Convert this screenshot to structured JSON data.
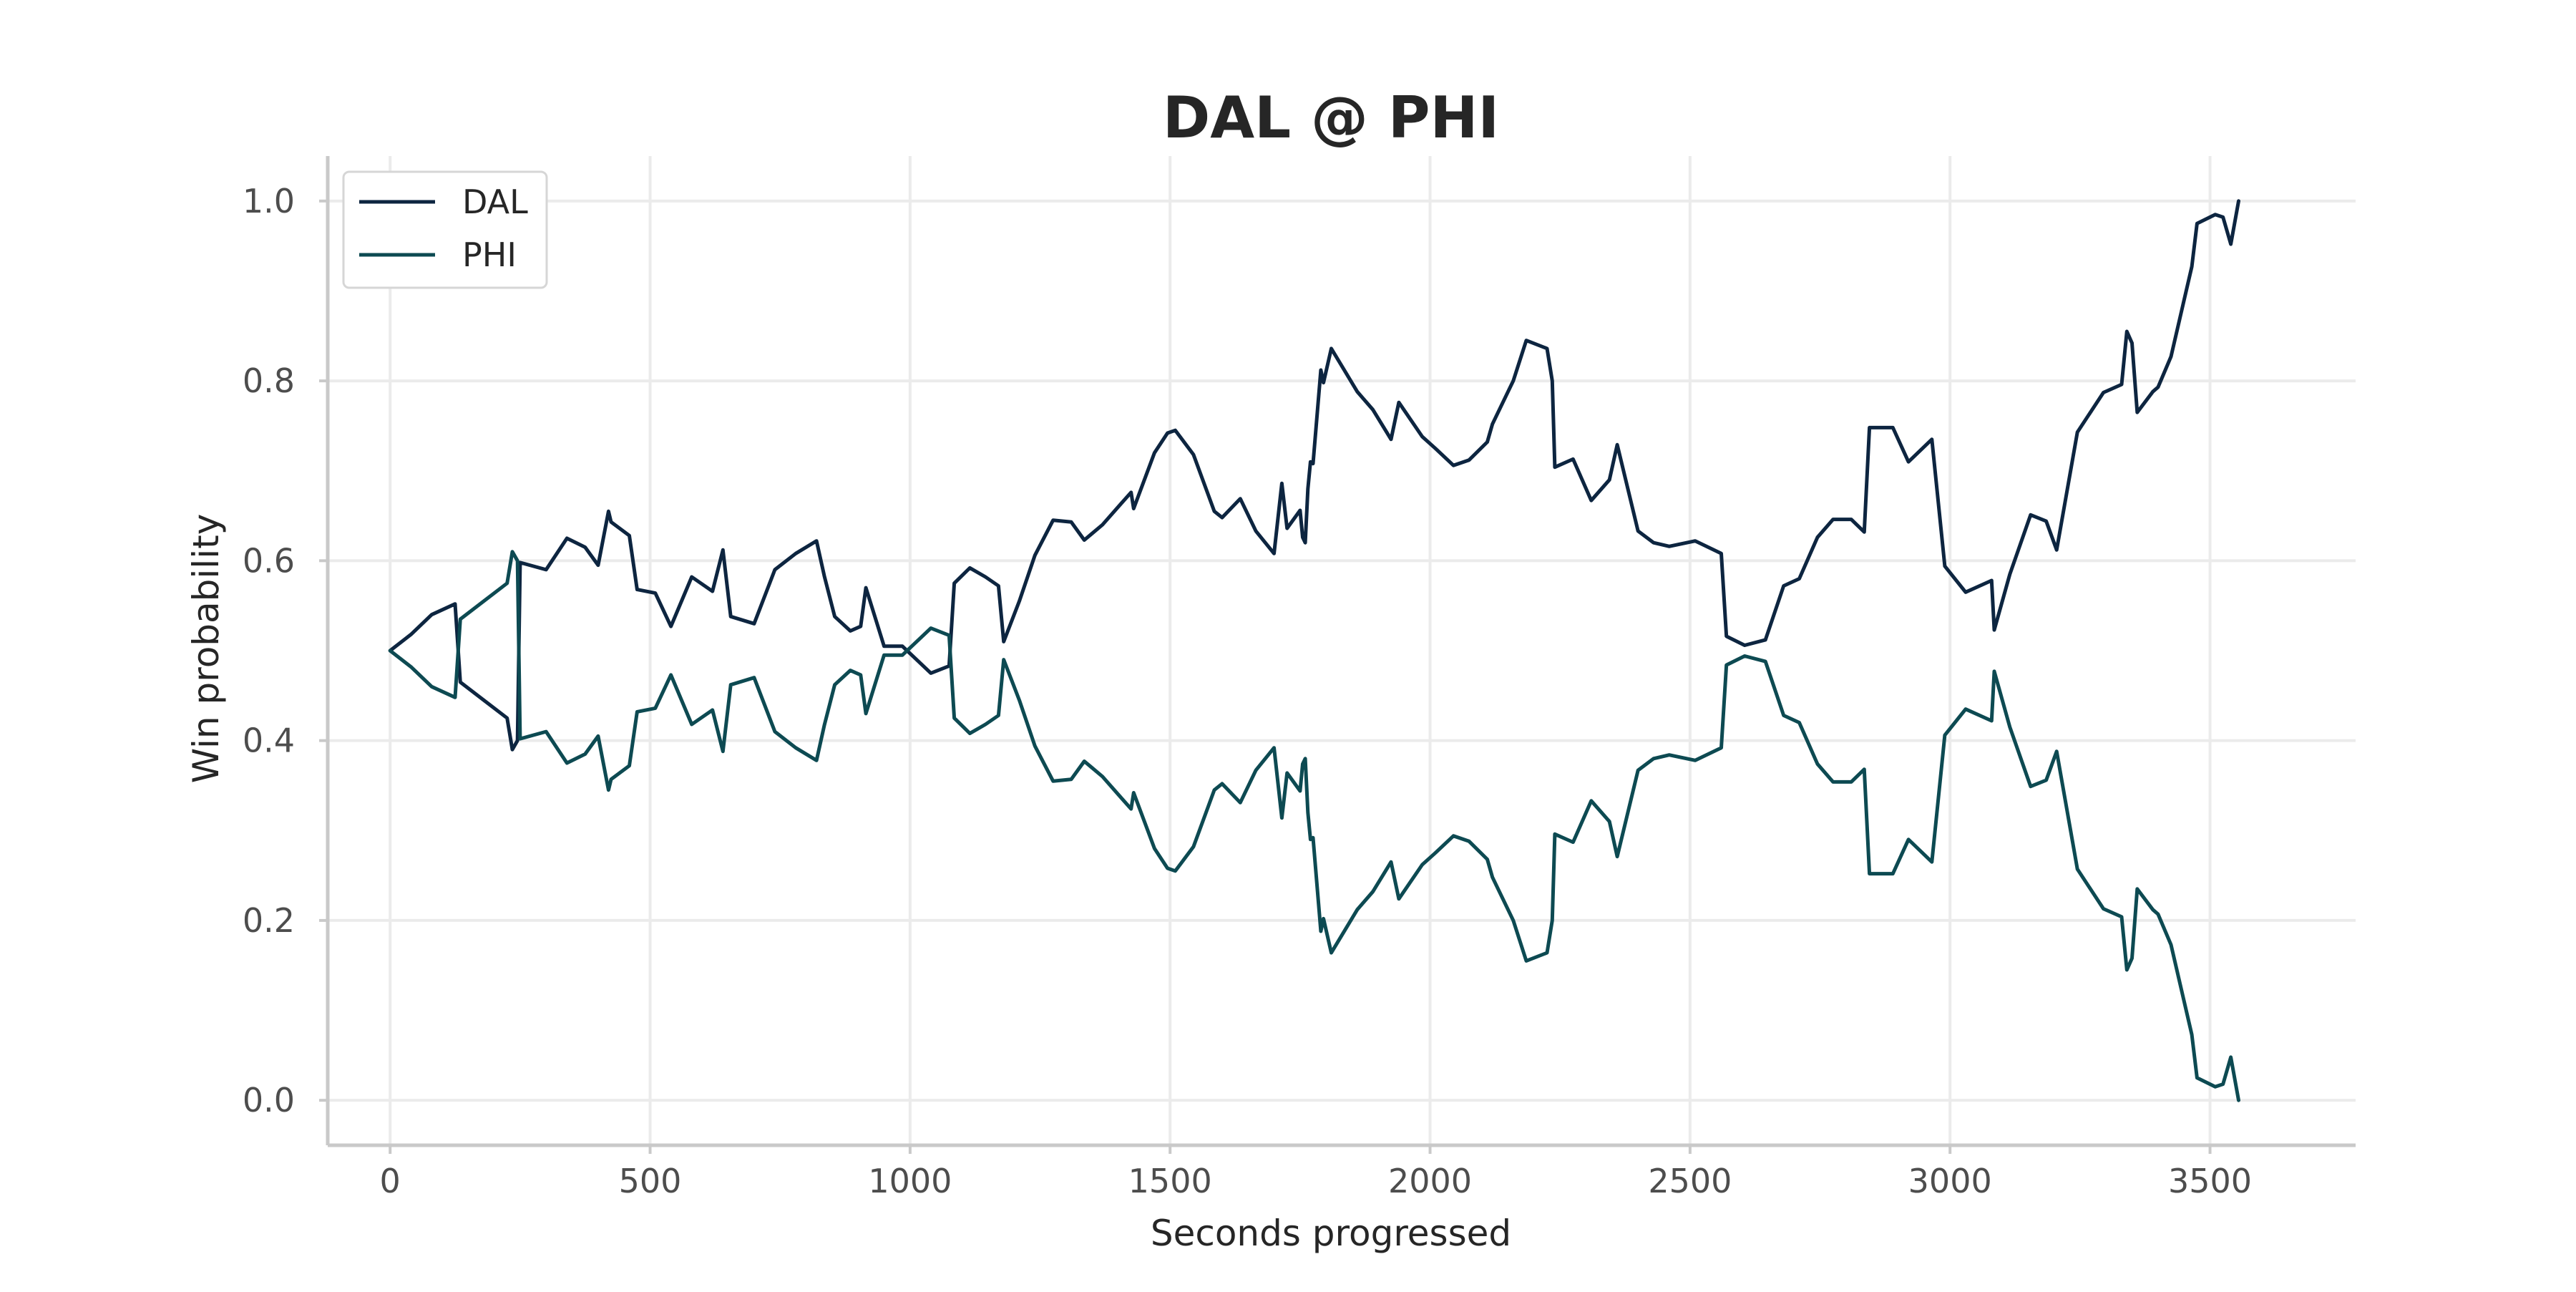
{
  "chart_data": {
    "type": "line",
    "title": "DAL @ PHI",
    "xlabel": "Seconds progressed",
    "ylabel": "Win probability",
    "xlim": [
      -120,
      3780
    ],
    "ylim": [
      -0.05,
      1.05
    ],
    "x_ticks": [
      0,
      500,
      1000,
      1500,
      2000,
      2500,
      3000,
      3500
    ],
    "y_ticks": [
      0.0,
      0.2,
      0.4,
      0.6,
      0.8,
      1.0
    ],
    "x_tick_labels": [
      "0",
      "500",
      "1000",
      "1500",
      "2000",
      "2500",
      "3000",
      "3500"
    ],
    "y_tick_labels": [
      "0.0",
      "0.2",
      "0.4",
      "0.6",
      "0.8",
      "1.0"
    ],
    "grid": true,
    "legend": "top-left",
    "series": [
      {
        "name": "DAL",
        "color": "#0d2540",
        "points": [
          [
            0,
            0.5
          ],
          [
            40,
            0.518
          ],
          [
            80,
            0.54
          ],
          [
            125,
            0.552
          ],
          [
            135,
            0.465
          ],
          [
            180,
            0.445
          ],
          [
            225,
            0.425
          ],
          [
            235,
            0.39
          ],
          [
            245,
            0.4
          ],
          [
            250,
            0.598
          ],
          [
            300,
            0.59
          ],
          [
            340,
            0.625
          ],
          [
            375,
            0.615
          ],
          [
            400,
            0.595
          ],
          [
            420,
            0.655
          ],
          [
            425,
            0.643
          ],
          [
            460,
            0.628
          ],
          [
            475,
            0.568
          ],
          [
            510,
            0.564
          ],
          [
            540,
            0.527
          ],
          [
            580,
            0.582
          ],
          [
            620,
            0.566
          ],
          [
            640,
            0.612
          ],
          [
            655,
            0.538
          ],
          [
            700,
            0.53
          ],
          [
            740,
            0.59
          ],
          [
            780,
            0.608
          ],
          [
            820,
            0.622
          ],
          [
            835,
            0.583
          ],
          [
            855,
            0.538
          ],
          [
            885,
            0.522
          ],
          [
            905,
            0.527
          ],
          [
            915,
            0.57
          ],
          [
            950,
            0.505
          ],
          [
            985,
            0.505
          ],
          [
            1040,
            0.475
          ],
          [
            1075,
            0.483
          ],
          [
            1085,
            0.575
          ],
          [
            1115,
            0.592
          ],
          [
            1145,
            0.582
          ],
          [
            1170,
            0.572
          ],
          [
            1180,
            0.51
          ],
          [
            1210,
            0.555
          ],
          [
            1240,
            0.606
          ],
          [
            1275,
            0.645
          ],
          [
            1310,
            0.643
          ],
          [
            1335,
            0.623
          ],
          [
            1370,
            0.64
          ],
          [
            1405,
            0.663
          ],
          [
            1425,
            0.676
          ],
          [
            1430,
            0.658
          ],
          [
            1470,
            0.72
          ],
          [
            1495,
            0.742
          ],
          [
            1510,
            0.745
          ],
          [
            1545,
            0.718
          ],
          [
            1585,
            0.655
          ],
          [
            1600,
            0.648
          ],
          [
            1635,
            0.669
          ],
          [
            1665,
            0.633
          ],
          [
            1700,
            0.608
          ],
          [
            1715,
            0.686
          ],
          [
            1725,
            0.636
          ],
          [
            1750,
            0.656
          ],
          [
            1755,
            0.626
          ],
          [
            1760,
            0.62
          ],
          [
            1765,
            0.68
          ],
          [
            1770,
            0.71
          ],
          [
            1775,
            0.708
          ],
          [
            1790,
            0.812
          ],
          [
            1795,
            0.798
          ],
          [
            1810,
            0.836
          ],
          [
            1860,
            0.788
          ],
          [
            1890,
            0.768
          ],
          [
            1925,
            0.735
          ],
          [
            1940,
            0.776
          ],
          [
            1985,
            0.738
          ],
          [
            2010,
            0.725
          ],
          [
            2045,
            0.706
          ],
          [
            2075,
            0.712
          ],
          [
            2110,
            0.732
          ],
          [
            2120,
            0.752
          ],
          [
            2160,
            0.8
          ],
          [
            2185,
            0.845
          ],
          [
            2225,
            0.836
          ],
          [
            2235,
            0.8
          ],
          [
            2240,
            0.704
          ],
          [
            2275,
            0.713
          ],
          [
            2310,
            0.667
          ],
          [
            2345,
            0.69
          ],
          [
            2360,
            0.729
          ],
          [
            2400,
            0.633
          ],
          [
            2430,
            0.62
          ],
          [
            2460,
            0.616
          ],
          [
            2510,
            0.622
          ],
          [
            2560,
            0.608
          ],
          [
            2570,
            0.516
          ],
          [
            2605,
            0.506
          ],
          [
            2645,
            0.512
          ],
          [
            2680,
            0.572
          ],
          [
            2710,
            0.58
          ],
          [
            2745,
            0.626
          ],
          [
            2775,
            0.646
          ],
          [
            2810,
            0.646
          ],
          [
            2835,
            0.632
          ],
          [
            2845,
            0.748
          ],
          [
            2890,
            0.748
          ],
          [
            2920,
            0.71
          ],
          [
            2965,
            0.735
          ],
          [
            2990,
            0.594
          ],
          [
            3030,
            0.565
          ],
          [
            3080,
            0.578
          ],
          [
            3085,
            0.523
          ],
          [
            3115,
            0.585
          ],
          [
            3155,
            0.651
          ],
          [
            3185,
            0.644
          ],
          [
            3205,
            0.612
          ],
          [
            3245,
            0.743
          ],
          [
            3295,
            0.787
          ],
          [
            3330,
            0.796
          ],
          [
            3340,
            0.855
          ],
          [
            3350,
            0.842
          ],
          [
            3360,
            0.765
          ],
          [
            3390,
            0.788
          ],
          [
            3400,
            0.793
          ],
          [
            3425,
            0.827
          ],
          [
            3465,
            0.927
          ],
          [
            3475,
            0.975
          ],
          [
            3510,
            0.985
          ],
          [
            3525,
            0.982
          ],
          [
            3540,
            0.952
          ],
          [
            3555,
            1.0
          ]
        ]
      },
      {
        "name": "PHI",
        "color": "#0d4a52",
        "points": [
          [
            0,
            0.5
          ],
          [
            40,
            0.482
          ],
          [
            80,
            0.46
          ],
          [
            125,
            0.448
          ],
          [
            135,
            0.535
          ],
          [
            180,
            0.555
          ],
          [
            225,
            0.575
          ],
          [
            235,
            0.61
          ],
          [
            245,
            0.6
          ],
          [
            250,
            0.402
          ],
          [
            300,
            0.41
          ],
          [
            340,
            0.375
          ],
          [
            375,
            0.385
          ],
          [
            400,
            0.405
          ],
          [
            420,
            0.345
          ],
          [
            425,
            0.357
          ],
          [
            460,
            0.372
          ],
          [
            475,
            0.432
          ],
          [
            510,
            0.436
          ],
          [
            540,
            0.473
          ],
          [
            580,
            0.418
          ],
          [
            620,
            0.434
          ],
          [
            640,
            0.388
          ],
          [
            655,
            0.462
          ],
          [
            700,
            0.47
          ],
          [
            740,
            0.41
          ],
          [
            780,
            0.392
          ],
          [
            820,
            0.378
          ],
          [
            835,
            0.417
          ],
          [
            855,
            0.462
          ],
          [
            885,
            0.478
          ],
          [
            905,
            0.473
          ],
          [
            915,
            0.43
          ],
          [
            950,
            0.495
          ],
          [
            985,
            0.495
          ],
          [
            1040,
            0.525
          ],
          [
            1075,
            0.517
          ],
          [
            1085,
            0.425
          ],
          [
            1115,
            0.408
          ],
          [
            1145,
            0.418
          ],
          [
            1170,
            0.428
          ],
          [
            1180,
            0.49
          ],
          [
            1210,
            0.445
          ],
          [
            1240,
            0.394
          ],
          [
            1275,
            0.355
          ],
          [
            1310,
            0.357
          ],
          [
            1335,
            0.377
          ],
          [
            1370,
            0.36
          ],
          [
            1405,
            0.337
          ],
          [
            1425,
            0.324
          ],
          [
            1430,
            0.342
          ],
          [
            1470,
            0.28
          ],
          [
            1495,
            0.258
          ],
          [
            1510,
            0.255
          ],
          [
            1545,
            0.282
          ],
          [
            1585,
            0.345
          ],
          [
            1600,
            0.352
          ],
          [
            1635,
            0.331
          ],
          [
            1665,
            0.367
          ],
          [
            1700,
            0.392
          ],
          [
            1715,
            0.314
          ],
          [
            1725,
            0.364
          ],
          [
            1750,
            0.344
          ],
          [
            1755,
            0.374
          ],
          [
            1760,
            0.38
          ],
          [
            1765,
            0.32
          ],
          [
            1770,
            0.29
          ],
          [
            1775,
            0.292
          ],
          [
            1790,
            0.188
          ],
          [
            1795,
            0.202
          ],
          [
            1810,
            0.164
          ],
          [
            1860,
            0.212
          ],
          [
            1890,
            0.232
          ],
          [
            1925,
            0.265
          ],
          [
            1940,
            0.224
          ],
          [
            1985,
            0.262
          ],
          [
            2010,
            0.275
          ],
          [
            2045,
            0.294
          ],
          [
            2075,
            0.288
          ],
          [
            2110,
            0.268
          ],
          [
            2120,
            0.248
          ],
          [
            2160,
            0.2
          ],
          [
            2185,
            0.155
          ],
          [
            2225,
            0.164
          ],
          [
            2235,
            0.2
          ],
          [
            2240,
            0.296
          ],
          [
            2275,
            0.287
          ],
          [
            2310,
            0.333
          ],
          [
            2345,
            0.31
          ],
          [
            2360,
            0.271
          ],
          [
            2400,
            0.367
          ],
          [
            2430,
            0.38
          ],
          [
            2460,
            0.384
          ],
          [
            2510,
            0.378
          ],
          [
            2560,
            0.392
          ],
          [
            2570,
            0.484
          ],
          [
            2605,
            0.494
          ],
          [
            2645,
            0.488
          ],
          [
            2680,
            0.428
          ],
          [
            2710,
            0.42
          ],
          [
            2745,
            0.374
          ],
          [
            2775,
            0.354
          ],
          [
            2810,
            0.354
          ],
          [
            2835,
            0.368
          ],
          [
            2845,
            0.252
          ],
          [
            2890,
            0.252
          ],
          [
            2920,
            0.29
          ],
          [
            2965,
            0.265
          ],
          [
            2990,
            0.406
          ],
          [
            3030,
            0.435
          ],
          [
            3080,
            0.422
          ],
          [
            3085,
            0.477
          ],
          [
            3115,
            0.415
          ],
          [
            3155,
            0.349
          ],
          [
            3185,
            0.356
          ],
          [
            3205,
            0.388
          ],
          [
            3245,
            0.257
          ],
          [
            3295,
            0.213
          ],
          [
            3330,
            0.204
          ],
          [
            3340,
            0.145
          ],
          [
            3350,
            0.158
          ],
          [
            3360,
            0.235
          ],
          [
            3390,
            0.212
          ],
          [
            3400,
            0.207
          ],
          [
            3425,
            0.173
          ],
          [
            3465,
            0.073
          ],
          [
            3475,
            0.025
          ],
          [
            3510,
            0.015
          ],
          [
            3525,
            0.018
          ],
          [
            3540,
            0.048
          ],
          [
            3555,
            0.0
          ]
        ]
      }
    ]
  }
}
